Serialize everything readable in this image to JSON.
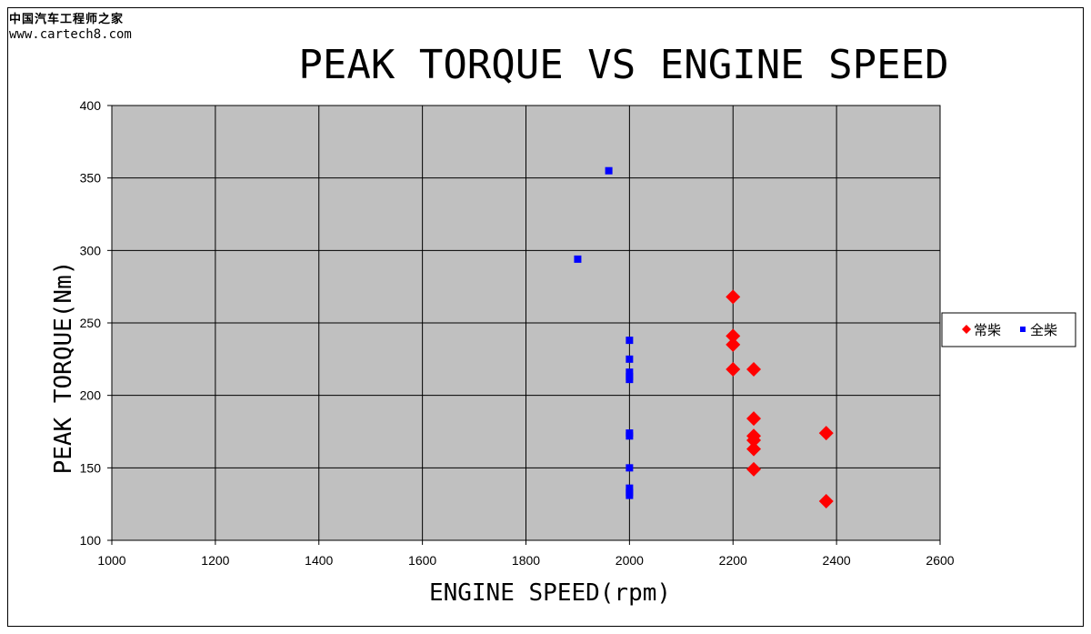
{
  "watermark": {
    "line1": "中国汽车工程师之家",
    "line2": "www.cartech8.com"
  },
  "chart_data": {
    "type": "scatter",
    "title": "PEAK TORQUE VS ENGINE SPEED",
    "xlabel": "ENGINE SPEED(rpm)",
    "ylabel": "PEAK TORQUE(Nm)",
    "xlim": [
      1000,
      2600
    ],
    "ylim": [
      100,
      400
    ],
    "x_ticks": [
      1000,
      1200,
      1400,
      1600,
      1800,
      2000,
      2200,
      2400,
      2600
    ],
    "y_ticks": [
      100,
      150,
      200,
      250,
      300,
      350,
      400
    ],
    "grid": true,
    "plot_background": "#c0c0c0",
    "legend_position": "right",
    "series": [
      {
        "name": "常柴",
        "marker": "diamond",
        "color": "#ff0000",
        "points": [
          {
            "x": 2200,
            "y": 268
          },
          {
            "x": 2200,
            "y": 241
          },
          {
            "x": 2200,
            "y": 235
          },
          {
            "x": 2200,
            "y": 218
          },
          {
            "x": 2240,
            "y": 218
          },
          {
            "x": 2240,
            "y": 184
          },
          {
            "x": 2240,
            "y": 172
          },
          {
            "x": 2240,
            "y": 169
          },
          {
            "x": 2240,
            "y": 163
          },
          {
            "x": 2240,
            "y": 149
          },
          {
            "x": 2380,
            "y": 174
          },
          {
            "x": 2380,
            "y": 127
          }
        ]
      },
      {
        "name": "全柴",
        "marker": "square",
        "color": "#0000ff",
        "points": [
          {
            "x": 1960,
            "y": 355
          },
          {
            "x": 1900,
            "y": 294
          },
          {
            "x": 2000,
            "y": 238
          },
          {
            "x": 2000,
            "y": 225
          },
          {
            "x": 2000,
            "y": 216
          },
          {
            "x": 2000,
            "y": 213
          },
          {
            "x": 2000,
            "y": 211
          },
          {
            "x": 2000,
            "y": 174
          },
          {
            "x": 2000,
            "y": 172
          },
          {
            "x": 2000,
            "y": 150
          },
          {
            "x": 2000,
            "y": 136
          },
          {
            "x": 2000,
            "y": 133
          },
          {
            "x": 2000,
            "y": 131
          }
        ]
      }
    ]
  }
}
